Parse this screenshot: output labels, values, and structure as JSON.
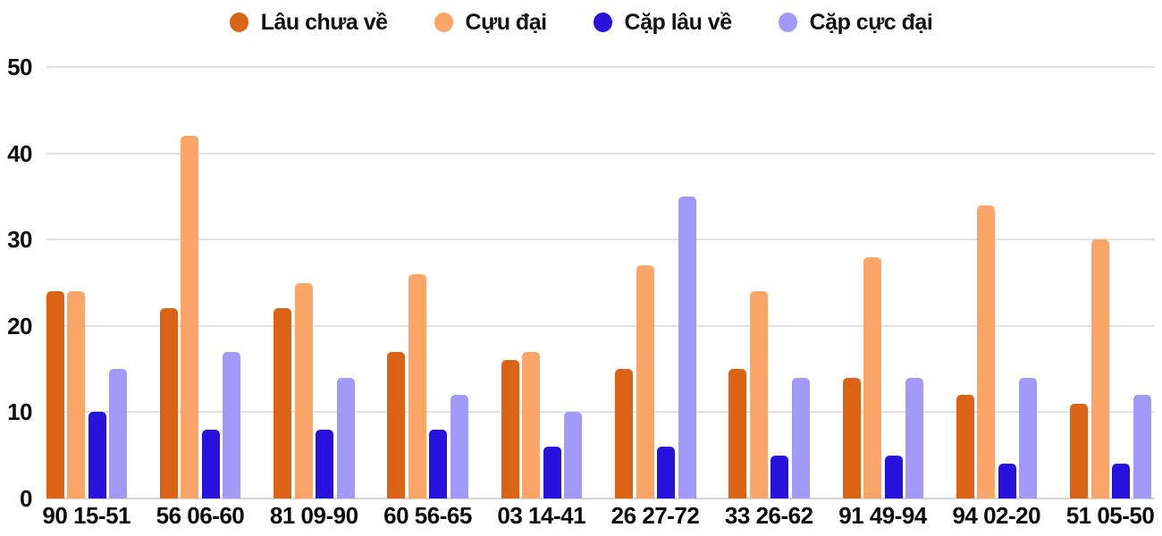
{
  "chart_data": {
    "type": "bar",
    "title": "",
    "xlabel": "",
    "ylabel": "",
    "categories": [
      "90 15-51",
      "56 06-60",
      "81 09-90",
      "60 56-65",
      "03 14-41",
      "26 27-72",
      "33 26-62",
      "91 49-94",
      "94 02-20",
      "51 05-50"
    ],
    "series": [
      {
        "name": "Lâu chưa về",
        "color": "#db6316",
        "values": [
          24,
          22,
          22,
          17,
          16,
          15,
          15,
          14,
          12,
          11
        ]
      },
      {
        "name": "Cựu đại",
        "color": "#fca569",
        "values": [
          24,
          42,
          25,
          26,
          17,
          27,
          24,
          28,
          34,
          30
        ]
      },
      {
        "name": "Cặp lâu về",
        "color": "#2712dd",
        "values": [
          10,
          8,
          8,
          8,
          6,
          6,
          5,
          5,
          4,
          4
        ]
      },
      {
        "name": "Cặp cực đại",
        "color": "#a299f8",
        "values": [
          15,
          17,
          14,
          12,
          10,
          35,
          14,
          14,
          14,
          12
        ]
      }
    ],
    "ylim": [
      0,
      50
    ],
    "yticks": [
      0,
      10,
      20,
      30,
      40,
      50
    ],
    "grid": true,
    "legend_position": "top"
  },
  "colors": {
    "background": "#ffffff",
    "gridline": "#e2e2e2",
    "axis_text": "#0d0d0d"
  }
}
